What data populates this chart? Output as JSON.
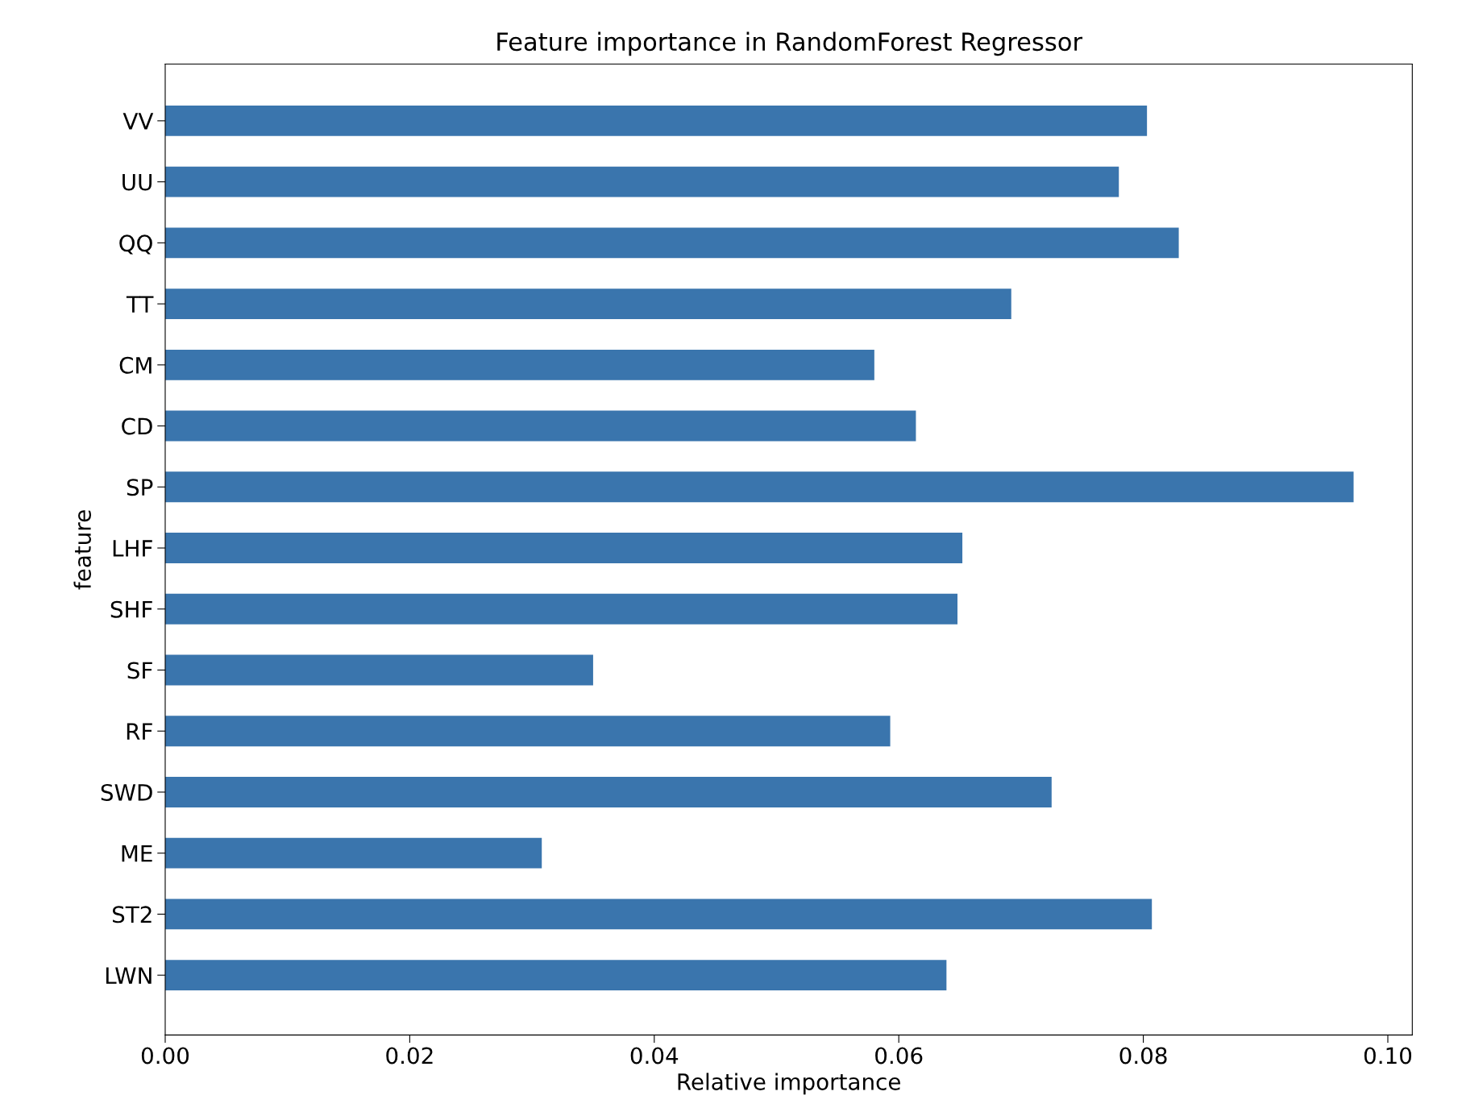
{
  "chart_data": {
    "type": "bar",
    "orientation": "horizontal",
    "title": "Feature importance in RandomForest Regressor",
    "xlabel": "Relative importance",
    "ylabel": "feature",
    "categories": [
      "VV",
      "UU",
      "QQ",
      "TT",
      "CM",
      "CD",
      "SP",
      "LHF",
      "SHF",
      "SF",
      "RF",
      "SWD",
      "ME",
      "ST2",
      "LWN"
    ],
    "values": [
      0.0803,
      0.078,
      0.0829,
      0.0692,
      0.058,
      0.0614,
      0.0972,
      0.0652,
      0.0648,
      0.035,
      0.0593,
      0.0725,
      0.0308,
      0.0807,
      0.0639
    ],
    "color": "#3a75ad",
    "xlim": [
      0,
      0.102
    ],
    "xticks": [
      {
        "value": 0,
        "label": "0.00"
      },
      {
        "value": 0.02,
        "label": "0.02"
      },
      {
        "value": 0.04,
        "label": "0.04"
      },
      {
        "value": 0.06,
        "label": "0.06"
      },
      {
        "value": 0.08,
        "label": "0.08"
      },
      {
        "value": 0.1,
        "label": "0.10"
      }
    ],
    "grid": false
  }
}
